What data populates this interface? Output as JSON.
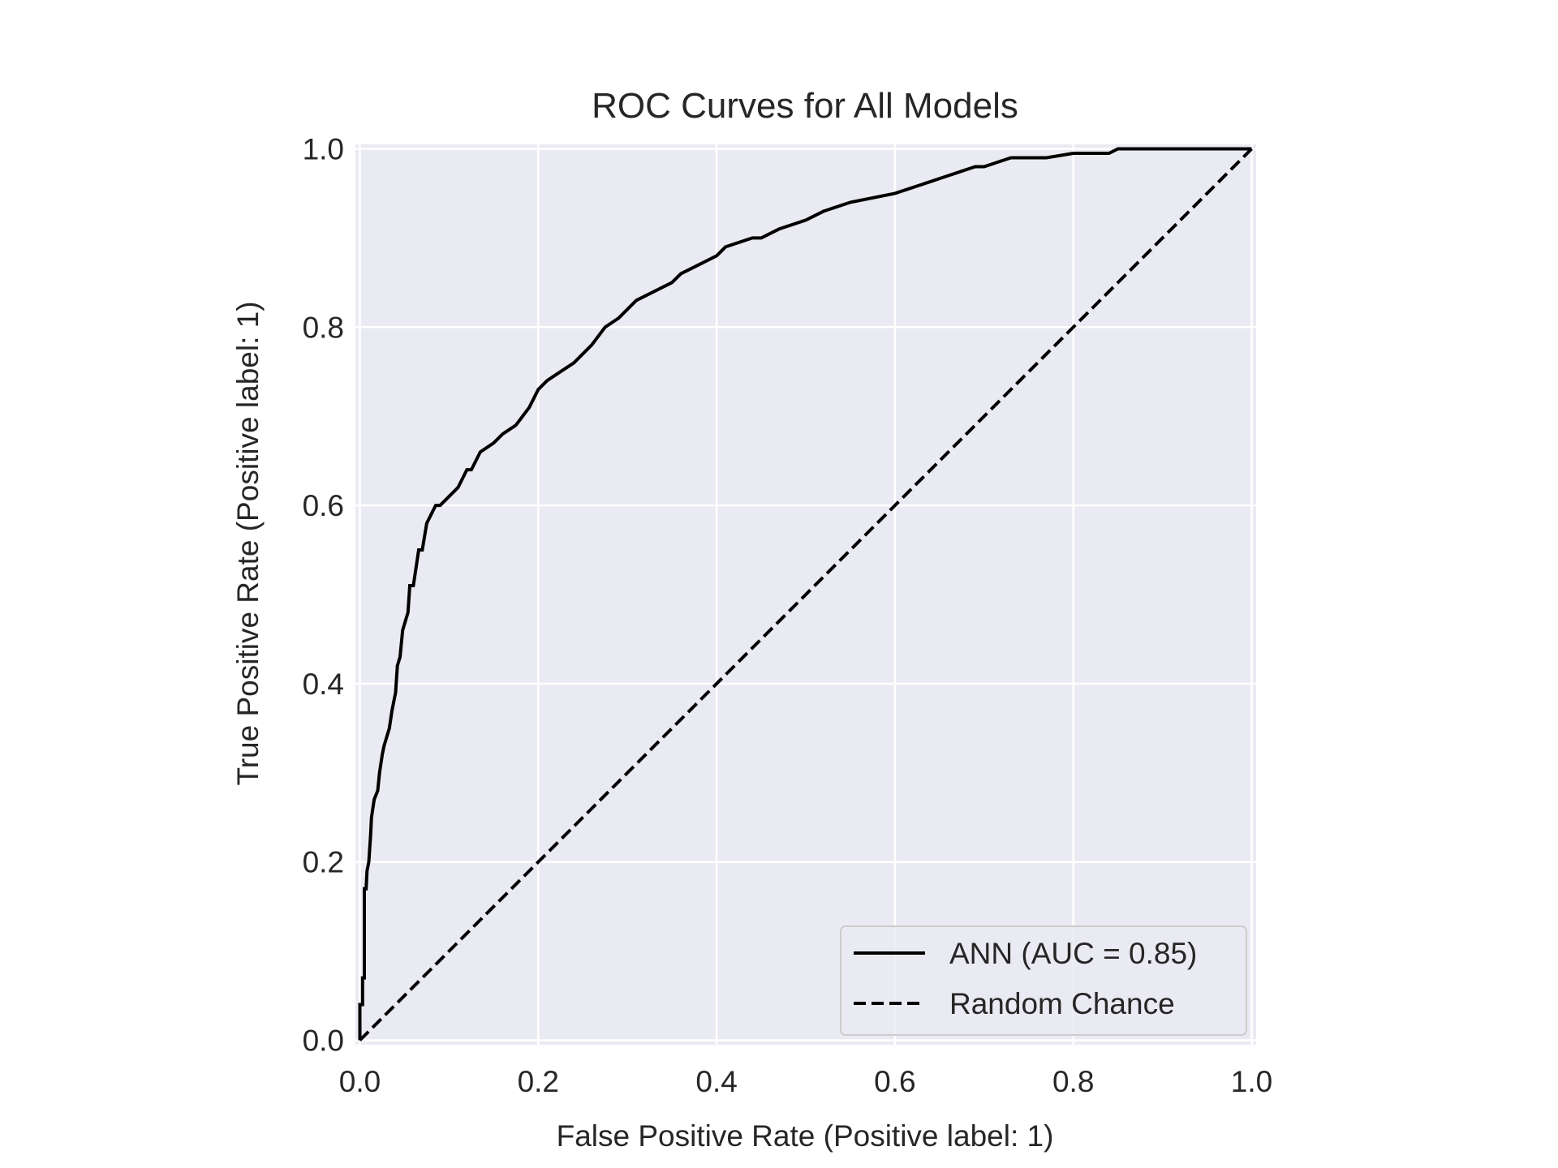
{
  "chart_data": {
    "type": "line",
    "title": "ROC Curves for All Models",
    "xlabel": "False Positive Rate (Positive label: 1)",
    "ylabel": "True Positive Rate (Positive label: 1)",
    "xlim": [
      -0.005,
      1.005
    ],
    "ylim": [
      -0.005,
      1.005
    ],
    "xticks": [
      0.0,
      0.2,
      0.4,
      0.6,
      0.8,
      1.0
    ],
    "xtick_labels": [
      "0.0",
      "0.2",
      "0.4",
      "0.6",
      "0.8",
      "1.0"
    ],
    "yticks": [
      0.0,
      0.2,
      0.4,
      0.6,
      0.8,
      1.0
    ],
    "ytick_labels": [
      "0.0",
      "0.2",
      "0.4",
      "0.6",
      "0.8",
      "1.0"
    ],
    "grid": true,
    "legend_position": "lower-right",
    "background_color": "#eaeaf2",
    "grid_color": "#ffffff",
    "line_color": "#000000",
    "series": [
      {
        "name": "ANN (AUC = 0.85)",
        "style": "solid",
        "x": [
          0.0,
          0.0,
          0.003,
          0.003,
          0.005,
          0.005,
          0.007,
          0.008,
          0.01,
          0.012,
          0.013,
          0.016,
          0.02,
          0.022,
          0.025,
          0.027,
          0.03,
          0.033,
          0.036,
          0.04,
          0.042,
          0.045,
          0.048,
          0.051,
          0.054,
          0.056,
          0.06,
          0.063,
          0.066,
          0.07,
          0.075,
          0.08,
          0.085,
          0.09,
          0.1,
          0.11,
          0.12,
          0.125,
          0.135,
          0.15,
          0.16,
          0.175,
          0.19,
          0.2,
          0.21,
          0.225,
          0.24,
          0.25,
          0.26,
          0.275,
          0.29,
          0.3,
          0.31,
          0.33,
          0.35,
          0.36,
          0.38,
          0.4,
          0.41,
          0.44,
          0.45,
          0.47,
          0.5,
          0.52,
          0.55,
          0.6,
          0.63,
          0.66,
          0.69,
          0.7,
          0.73,
          0.77,
          0.8,
          0.84,
          0.85,
          0.9,
          0.92,
          1.0
        ],
        "y": [
          0.0,
          0.04,
          0.04,
          0.07,
          0.07,
          0.17,
          0.17,
          0.19,
          0.2,
          0.23,
          0.25,
          0.27,
          0.28,
          0.3,
          0.32,
          0.33,
          0.34,
          0.35,
          0.37,
          0.39,
          0.42,
          0.43,
          0.46,
          0.47,
          0.48,
          0.51,
          0.51,
          0.53,
          0.55,
          0.55,
          0.58,
          0.59,
          0.6,
          0.6,
          0.61,
          0.62,
          0.64,
          0.64,
          0.66,
          0.67,
          0.68,
          0.69,
          0.71,
          0.73,
          0.74,
          0.75,
          0.76,
          0.77,
          0.78,
          0.8,
          0.81,
          0.82,
          0.83,
          0.84,
          0.85,
          0.86,
          0.87,
          0.88,
          0.89,
          0.9,
          0.9,
          0.91,
          0.92,
          0.93,
          0.94,
          0.95,
          0.96,
          0.97,
          0.98,
          0.98,
          0.99,
          0.99,
          0.995,
          0.995,
          1.0,
          1.0,
          1.0,
          1.0
        ]
      },
      {
        "name": "Random Chance",
        "style": "dashed",
        "x": [
          0.0,
          1.0
        ],
        "y": [
          0.0,
          1.0
        ]
      }
    ]
  }
}
